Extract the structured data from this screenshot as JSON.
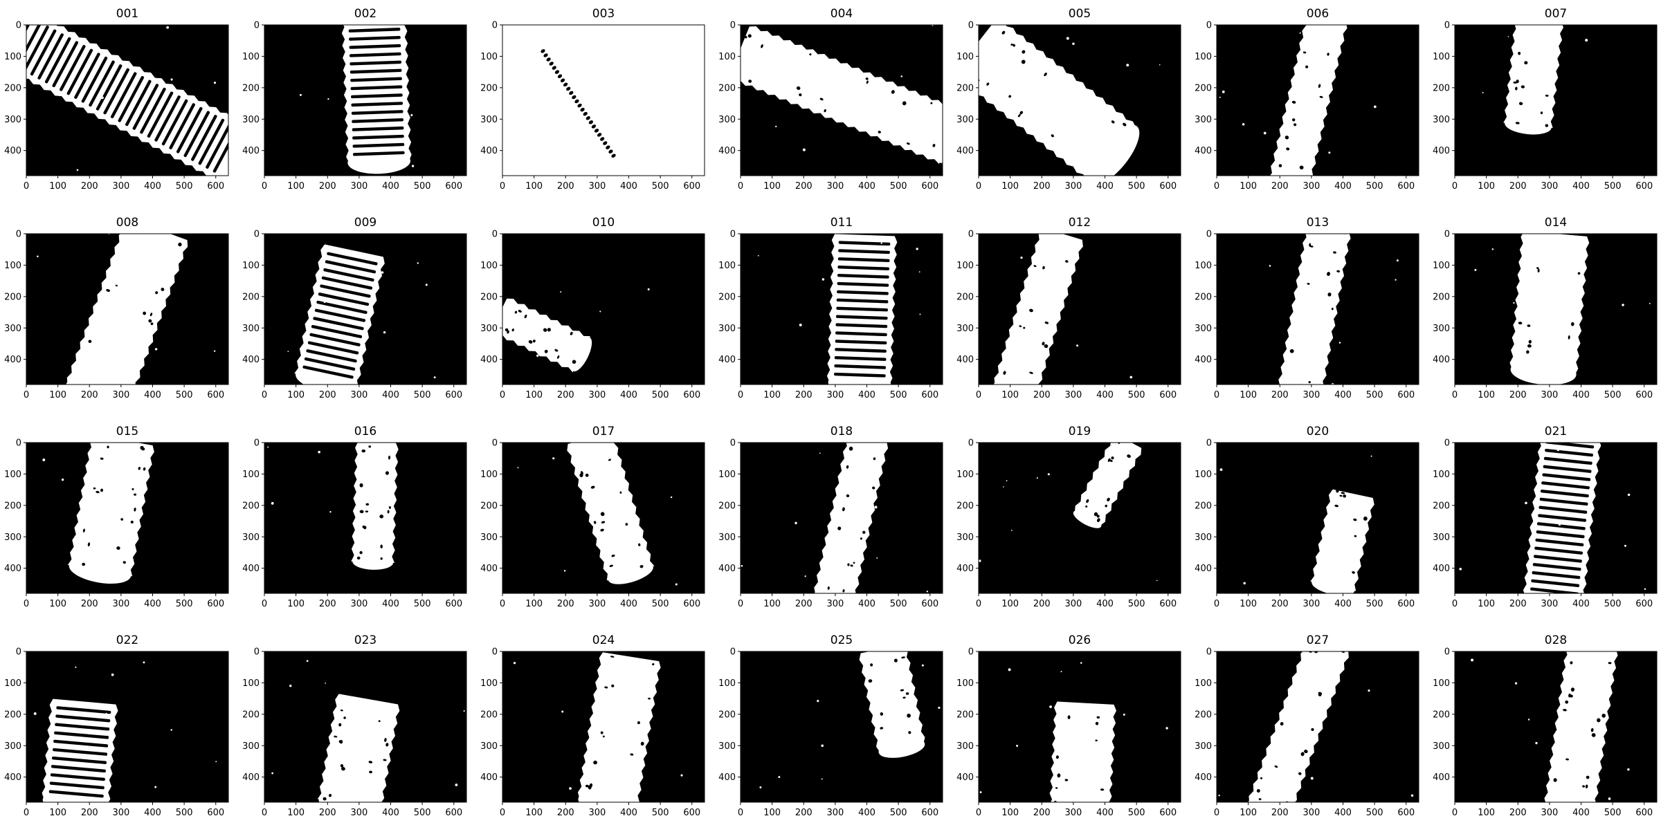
{
  "figure": {
    "x_ticks": [
      "0",
      "100",
      "200",
      "300",
      "400",
      "500",
      "600"
    ],
    "y_ticks": [
      "0",
      "100",
      "200",
      "300",
      "400"
    ],
    "x_max": 640,
    "y_max": 480,
    "image_style": "binary mask: white object on black background",
    "panels": [
      {
        "title": "001",
        "kind": "threaded",
        "angle": -62,
        "cx": 320,
        "cy": 230,
        "len": 760,
        "w": 190,
        "inverted": false
      },
      {
        "title": "002",
        "kind": "threaded",
        "angle": -2,
        "cx": 355,
        "cy": 200,
        "len": 470,
        "w": 190,
        "inverted": false
      },
      {
        "title": "003",
        "kind": "dotline",
        "angle": -34,
        "cx": 240,
        "cy": 250,
        "len": 400,
        "w": 10,
        "inverted": true
      },
      {
        "title": "004",
        "kind": "plain",
        "angle": -68,
        "cx": 330,
        "cy": 220,
        "len": 720,
        "w": 170,
        "inverted": false
      },
      {
        "title": "005",
        "kind": "plain",
        "angle": -52,
        "cx": 210,
        "cy": 240,
        "len": 560,
        "w": 220,
        "inverted": false
      },
      {
        "title": "006",
        "kind": "plain",
        "angle": 13,
        "cx": 290,
        "cy": 240,
        "len": 540,
        "w": 120,
        "inverted": false
      },
      {
        "title": "007",
        "kind": "plain",
        "angle": 6,
        "cx": 250,
        "cy": 150,
        "len": 340,
        "w": 140,
        "inverted": false
      },
      {
        "title": "008",
        "kind": "plain",
        "angle": 20,
        "cx": 320,
        "cy": 250,
        "len": 560,
        "w": 200,
        "inverted": false
      },
      {
        "title": "009",
        "kind": "threaded",
        "angle": 12,
        "cx": 240,
        "cy": 260,
        "len": 420,
        "w": 190,
        "inverted": false
      },
      {
        "title": "010",
        "kind": "plain",
        "angle": -64,
        "cx": 120,
        "cy": 320,
        "len": 290,
        "w": 110,
        "inverted": false
      },
      {
        "title": "011",
        "kind": "threaded",
        "angle": 2,
        "cx": 385,
        "cy": 240,
        "len": 470,
        "w": 190,
        "inverted": false
      },
      {
        "title": "012",
        "kind": "plain",
        "angle": 17,
        "cx": 190,
        "cy": 250,
        "len": 520,
        "w": 130,
        "inverted": false
      },
      {
        "title": "013",
        "kind": "plain",
        "angle": 10,
        "cx": 310,
        "cy": 240,
        "len": 520,
        "w": 130,
        "inverted": false
      },
      {
        "title": "014",
        "kind": "plain",
        "angle": 5,
        "cx": 300,
        "cy": 220,
        "len": 440,
        "w": 200,
        "inverted": false
      },
      {
        "title": "015",
        "kind": "plain",
        "angle": 10,
        "cx": 270,
        "cy": 200,
        "len": 420,
        "w": 190,
        "inverted": false
      },
      {
        "title": "016",
        "kind": "plain",
        "angle": 2,
        "cx": 350,
        "cy": 190,
        "len": 380,
        "w": 120,
        "inverted": false
      },
      {
        "title": "017",
        "kind": "plain",
        "angle": -17,
        "cx": 340,
        "cy": 200,
        "len": 450,
        "w": 140,
        "inverted": false
      },
      {
        "title": "018",
        "kind": "plain",
        "angle": 12,
        "cx": 350,
        "cy": 240,
        "len": 520,
        "w": 120,
        "inverted": false
      },
      {
        "title": "019",
        "kind": "plain",
        "angle": 28,
        "cx": 410,
        "cy": 120,
        "len": 280,
        "w": 90,
        "inverted": false
      },
      {
        "title": "020",
        "kind": "plain",
        "angle": 12,
        "cx": 400,
        "cy": 310,
        "len": 300,
        "w": 130,
        "inverted": false
      },
      {
        "title": "021",
        "kind": "threaded",
        "angle": 6,
        "cx": 340,
        "cy": 240,
        "len": 520,
        "w": 180,
        "inverted": false
      },
      {
        "title": "022",
        "kind": "threaded",
        "angle": 5,
        "cx": 170,
        "cy": 320,
        "len": 320,
        "w": 200,
        "inverted": false
      },
      {
        "title": "023",
        "kind": "plain",
        "angle": 10,
        "cx": 300,
        "cy": 320,
        "len": 340,
        "w": 190,
        "inverted": false
      },
      {
        "title": "024",
        "kind": "plain",
        "angle": 9,
        "cx": 370,
        "cy": 250,
        "len": 470,
        "w": 180,
        "inverted": false
      },
      {
        "title": "025",
        "kind": "plain",
        "angle": -11,
        "cx": 480,
        "cy": 150,
        "len": 320,
        "w": 140,
        "inverted": false
      },
      {
        "title": "026",
        "kind": "plain",
        "angle": 3,
        "cx": 330,
        "cy": 330,
        "len": 330,
        "w": 180,
        "inverted": false
      },
      {
        "title": "027",
        "kind": "plain",
        "angle": 20,
        "cx": 260,
        "cy": 240,
        "len": 560,
        "w": 130,
        "inverted": false
      },
      {
        "title": "028",
        "kind": "plain",
        "angle": 8,
        "cx": 400,
        "cy": 240,
        "len": 520,
        "w": 150,
        "inverted": false
      }
    ]
  }
}
